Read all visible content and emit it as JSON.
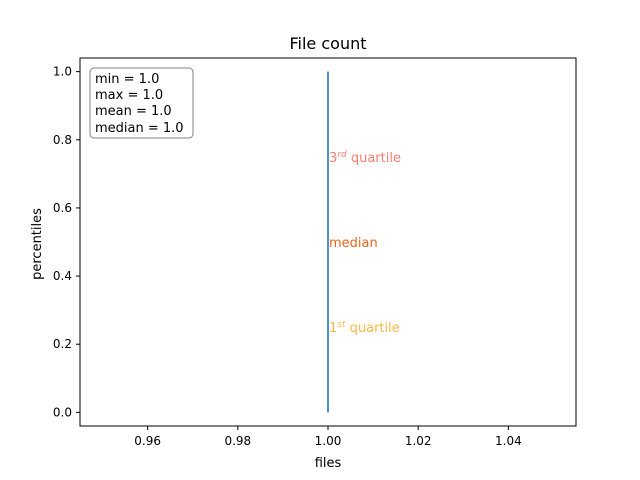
{
  "chart_data": {
    "type": "line",
    "title": "File count",
    "xlabel": "files",
    "ylabel": "percentiles",
    "xlim": [
      0.945,
      1.055
    ],
    "ylim": [
      -0.04,
      1.04
    ],
    "xticks": [
      0.96,
      0.98,
      1.0,
      1.02,
      1.04
    ],
    "xtick_labels": [
      "0.96",
      "0.98",
      "1.00",
      "1.02",
      "1.04"
    ],
    "yticks": [
      0.0,
      0.2,
      0.4,
      0.6,
      0.8,
      1.0
    ],
    "ytick_labels": [
      "0.0",
      "0.2",
      "0.4",
      "0.6",
      "0.8",
      "1.0"
    ],
    "grid": false,
    "series": [
      {
        "x": [
          1.0,
          1.0
        ],
        "y": [
          0.0,
          1.0
        ],
        "color": "#1f77b4"
      }
    ],
    "stats_box": {
      "position": "top-left",
      "lines": [
        "min = 1.0",
        "max = 1.0",
        "mean = 1.0",
        "median = 1.0"
      ]
    },
    "annotations": [
      {
        "kind": "q3",
        "base": "3",
        "sup": "rd",
        "rest": " quartile",
        "x": 1.0,
        "y": 0.75,
        "color": "#fa8072"
      },
      {
        "kind": "median",
        "base": "median",
        "sup": "",
        "rest": "",
        "x": 1.0,
        "y": 0.5,
        "color": "#e8651a"
      },
      {
        "kind": "q1",
        "base": "1",
        "sup": "st",
        "rest": " quartile",
        "x": 1.0,
        "y": 0.25,
        "color": "#f7b944"
      }
    ]
  }
}
